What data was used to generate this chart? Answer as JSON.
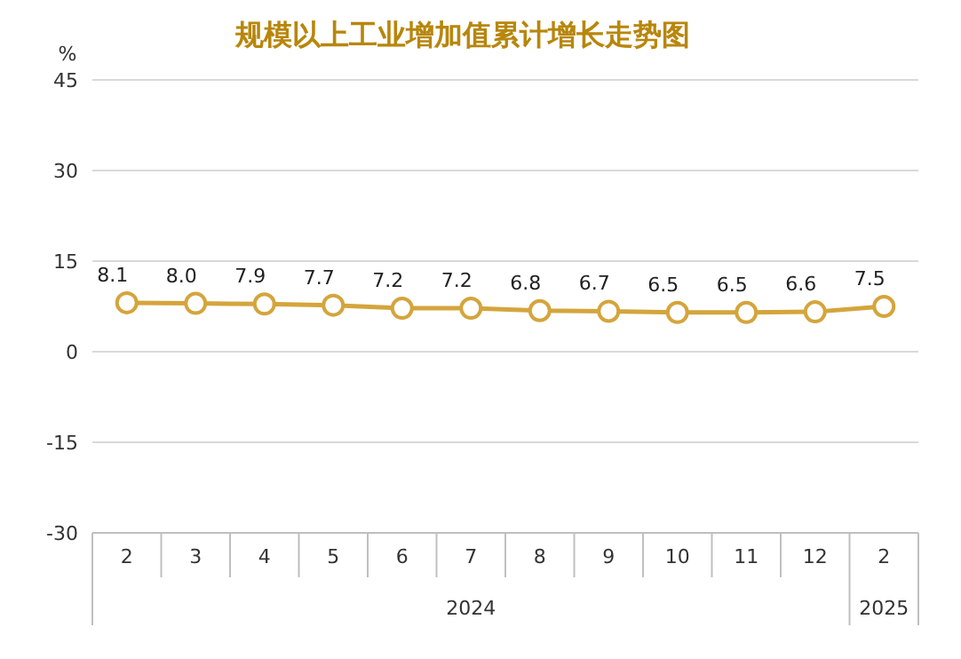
{
  "chart_data": {
    "type": "line",
    "title": "规模以上工业增加值累计增长走势图",
    "ylabel": "%",
    "categories": [
      "2",
      "3",
      "4",
      "5",
      "6",
      "7",
      "8",
      "9",
      "10",
      "11",
      "12",
      "2"
    ],
    "series": [
      {
        "color": "#d4a53c",
        "values": [
          8.1,
          8.0,
          7.9,
          7.7,
          7.2,
          7.2,
          6.8,
          6.7,
          6.5,
          6.5,
          6.6,
          7.5
        ],
        "value_labels": [
          "8.1",
          "8.0",
          "7.9",
          "7.7",
          "7.2",
          "7.2",
          "6.8",
          "6.7",
          "6.5",
          "6.5",
          "6.6",
          "7.5"
        ]
      }
    ],
    "ylim": [
      -30,
      45
    ],
    "yticks": [
      -30,
      -15,
      0,
      15,
      30,
      45
    ],
    "grid": "y",
    "marker": "circle",
    "line_style": "solid",
    "annotations": [
      "2024",
      "2025"
    ]
  }
}
